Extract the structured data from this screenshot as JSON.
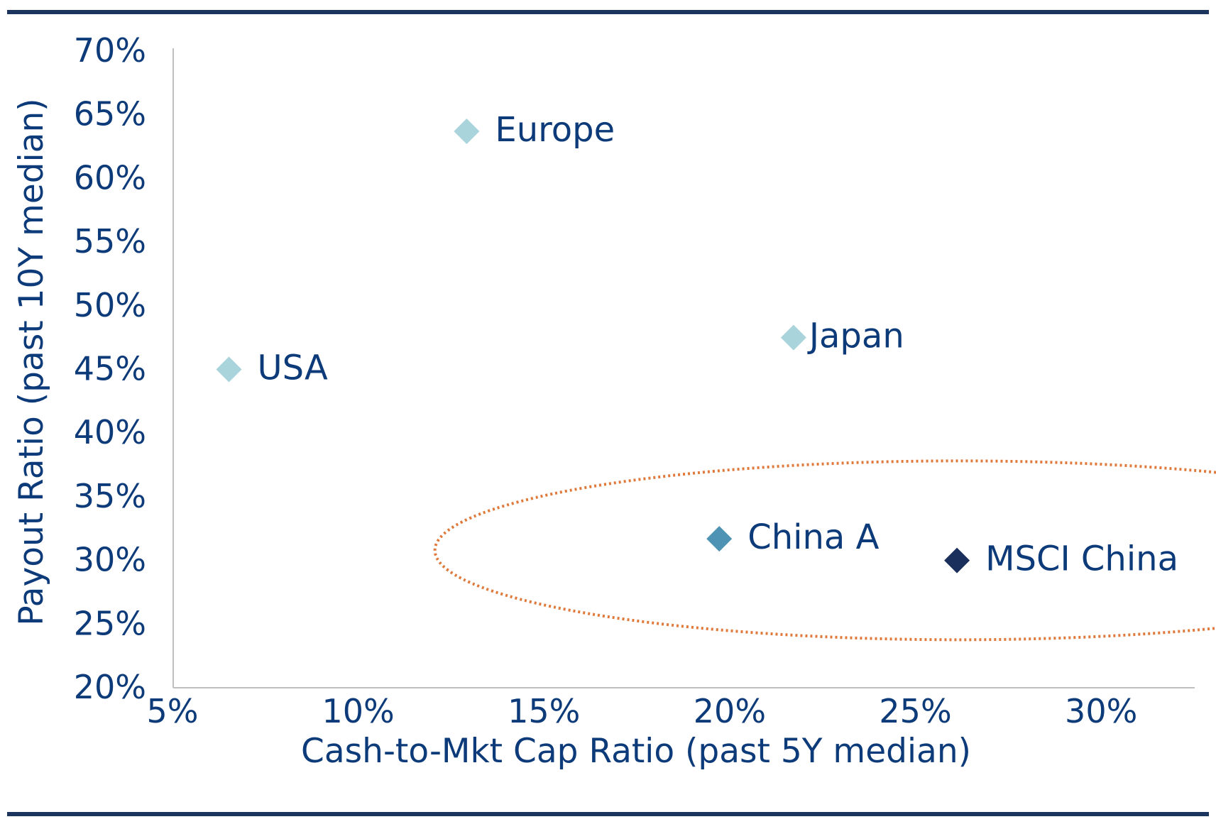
{
  "colors": {
    "navy": "#0d3b7a",
    "rule": "#1c355e",
    "axis": "#bfbfbf",
    "light_marker": "#a9d4dc",
    "mid_marker": "#4f93b4",
    "dark_marker": "#1b2f5c",
    "highlight": "#e07a3c"
  },
  "chart_data": {
    "type": "scatter",
    "title": "",
    "xlabel": "Cash-to-Mkt Cap Ratio (past 5Y median)",
    "ylabel": "Payout Ratio (past 10Y median)",
    "xlim": [
      5,
      32.5
    ],
    "ylim": [
      20,
      70
    ],
    "x_ticks": [
      5,
      10,
      15,
      20,
      25,
      30
    ],
    "x_tick_labels": [
      "5%",
      "10%",
      "15%",
      "20%",
      "25%",
      "30%"
    ],
    "y_ticks": [
      20,
      25,
      30,
      35,
      40,
      45,
      50,
      55,
      60,
      65,
      70
    ],
    "y_tick_labels": [
      "20%",
      "25%",
      "30%",
      "35%",
      "40%",
      "45%",
      "50%",
      "55%",
      "60%",
      "65%",
      "70%"
    ],
    "grid": false,
    "marker": "diamond",
    "points": [
      {
        "label": "USA",
        "x": 6.5,
        "y": 45.0,
        "color": "#a9d4dc"
      },
      {
        "label": "Europe",
        "x": 12.9,
        "y": 63.7,
        "color": "#a9d4dc"
      },
      {
        "label": "Japan",
        "x": 21.7,
        "y": 47.5,
        "color": "#a9d4dc"
      },
      {
        "label": "China A",
        "x": 19.7,
        "y": 31.7,
        "color": "#4f93b4"
      },
      {
        "label": "MSCI China",
        "x": 26.1,
        "y": 30.0,
        "color": "#1b2f5c"
      }
    ],
    "annotations": [
      {
        "type": "dotted-ellipse",
        "encloses": [
          "China A",
          "MSCI China"
        ],
        "color": "#e07a3c"
      }
    ]
  }
}
